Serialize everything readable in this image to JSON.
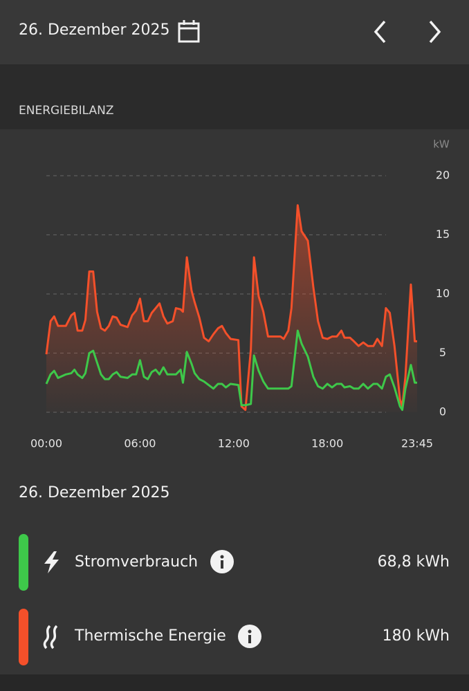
{
  "header": {
    "date": "26. Dezember 2025"
  },
  "section_title": "ENERGIEBILANZ",
  "chart_data": {
    "type": "line",
    "y_unit": "kW",
    "x": [
      0,
      0.27,
      0.5,
      0.75,
      1.25,
      1.6,
      1.8,
      2.0,
      2.3,
      2.5,
      2.75,
      3.0,
      3.25,
      3.5,
      3.75,
      4.0,
      4.25,
      4.5,
      4.75,
      5.2,
      5.5,
      5.75,
      6.0,
      6.25,
      6.5,
      6.75,
      7.0,
      7.25,
      7.5,
      7.75,
      8.1,
      8.3,
      8.6,
      8.75,
      9.0,
      9.3,
      9.5,
      9.8,
      10.1,
      10.4,
      10.7,
      11.0,
      11.25,
      11.5,
      11.8,
      12.3,
      12.5,
      12.75,
      13.1,
      13.3,
      13.6,
      13.9,
      14.2,
      14.75,
      15.0,
      15.2,
      15.5,
      15.7,
      16.1,
      16.35,
      16.75,
      17.1,
      17.4,
      17.7,
      18.0,
      18.3,
      18.6,
      18.9,
      19.1,
      19.45,
      19.7,
      20.0,
      20.3,
      20.6,
      20.95,
      21.2,
      21.5,
      21.75,
      22.0,
      22.3,
      22.65,
      22.8,
      23.0,
      23.35,
      23.6,
      23.75
    ],
    "series": [
      {
        "name": "Thermische Energie",
        "color": "#f4502a",
        "area": true,
        "values": [
          4.9,
          7.7,
          8.1,
          7.3,
          7.3,
          8.2,
          8.4,
          6.9,
          6.9,
          7.8,
          11.9,
          11.9,
          8.5,
          7.1,
          6.9,
          7.3,
          8.1,
          8.0,
          7.4,
          7.2,
          8.2,
          8.6,
          9.6,
          7.7,
          7.7,
          8.4,
          8.8,
          9.2,
          8.1,
          7.5,
          7.7,
          8.8,
          8.7,
          8.5,
          13.1,
          10.3,
          9.3,
          8.0,
          6.3,
          6.0,
          6.6,
          7.1,
          7.3,
          6.7,
          6.2,
          6.1,
          0.5,
          0.2,
          5.3,
          13.1,
          9.8,
          8.5,
          6.4,
          6.4,
          6.4,
          6.2,
          6.9,
          8.8,
          17.5,
          15.3,
          14.5,
          10.6,
          7.7,
          6.3,
          6.2,
          6.4,
          6.4,
          6.9,
          6.3,
          6.3,
          6.0,
          5.6,
          5.9,
          5.6,
          5.6,
          6.2,
          5.6,
          8.8,
          8.4,
          5.6,
          1.1,
          0.5,
          3.0,
          10.8,
          6.0,
          6.0
        ]
      },
      {
        "name": "Stromverbrauch",
        "color": "#3ec84a",
        "area": false,
        "values": [
          2.4,
          3.2,
          3.5,
          2.9,
          3.2,
          3.3,
          3.6,
          3.2,
          2.9,
          3.3,
          5.0,
          5.2,
          4.2,
          3.2,
          2.8,
          2.8,
          3.2,
          3.4,
          3.0,
          2.9,
          3.2,
          3.2,
          4.4,
          3.0,
          2.8,
          3.4,
          3.6,
          3.2,
          3.8,
          3.2,
          3.2,
          3.2,
          3.6,
          2.5,
          5.1,
          4.1,
          3.3,
          2.8,
          2.6,
          2.3,
          2.0,
          2.4,
          2.4,
          2.1,
          2.4,
          2.3,
          0.6,
          0.6,
          0.7,
          4.8,
          3.5,
          2.6,
          2.0,
          2.0,
          2.0,
          2.0,
          2.0,
          2.2,
          6.9,
          5.8,
          4.7,
          3.0,
          2.2,
          2.0,
          2.4,
          2.1,
          2.4,
          2.4,
          2.1,
          2.2,
          2.0,
          2.0,
          2.4,
          2.0,
          2.4,
          2.4,
          2.0,
          3.0,
          3.2,
          2.1,
          0.5,
          0.2,
          2.0,
          4.0,
          2.5,
          2.5
        ]
      }
    ],
    "xlim": [
      0,
      23.75
    ],
    "xticks": [
      {
        "value": 0,
        "label": "00:00"
      },
      {
        "value": 6,
        "label": "06:00"
      },
      {
        "value": 12,
        "label": "12:00"
      },
      {
        "value": 18,
        "label": "18:00"
      },
      {
        "value": 23.75,
        "label": "23:45"
      }
    ],
    "ylim": [
      0,
      20
    ],
    "yticks": [
      0,
      5,
      10,
      15,
      20
    ],
    "grid": true
  },
  "summary": {
    "date": "26. Dezember 2025",
    "items": [
      {
        "value": "68,8 kWh"
      },
      {
        "value": "180 kWh"
      }
    ]
  }
}
